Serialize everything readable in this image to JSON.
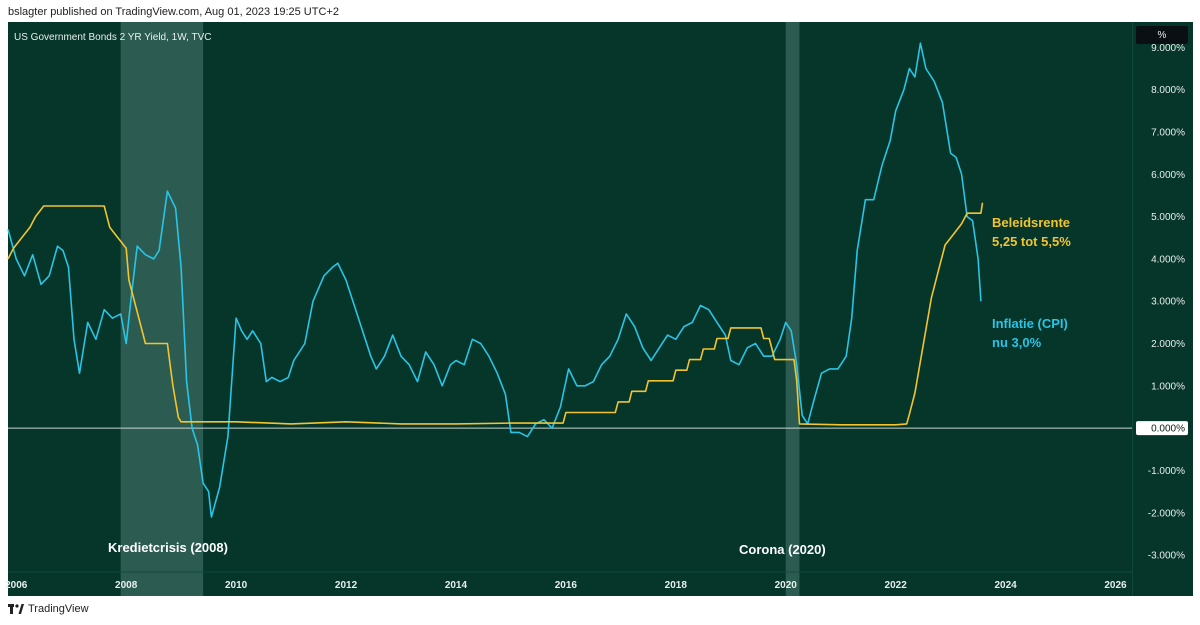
{
  "header": {
    "published_line": "bslagter published on TradingView.com, Aug 01, 2023 19:25 UTC+2",
    "symbol_title": "US Government Bonds 2 YR Yield, 1W, TVC",
    "unit_label": "%"
  },
  "footer": {
    "brand": "TradingView"
  },
  "colors": {
    "background": "#06352a",
    "inflation_line": "#29c4e6",
    "policy_rate_line": "#f2c430",
    "shading": "#3a6a5f",
    "zero_line": "#c9d6d1"
  },
  "annotations": {
    "credit_crisis": "Kredietcrisis (2008)",
    "corona": "Corona (2020)",
    "policy_rate_title": "Beleidsrente",
    "policy_rate_value": "5,25 tot 5,5%",
    "inflation_title": "Inflatie (CPI)",
    "inflation_value": "nu 3,0%"
  },
  "chart_data": {
    "type": "line",
    "x_range": [
      2005.85,
      2026.3
    ],
    "ylim": [
      -3.4,
      9.6
    ],
    "x_ticks": [
      {
        "label": "2006",
        "value": 2006
      },
      {
        "label": "2008",
        "value": 2008
      },
      {
        "label": "2010",
        "value": 2010
      },
      {
        "label": "2012",
        "value": 2012
      },
      {
        "label": "2014",
        "value": 2014
      },
      {
        "label": "2016",
        "value": 2016
      },
      {
        "label": "2018",
        "value": 2018
      },
      {
        "label": "2020",
        "value": 2020
      },
      {
        "label": "2022",
        "value": 2022
      },
      {
        "label": "2024",
        "value": 2024
      },
      {
        "label": "2026",
        "value": 2026
      }
    ],
    "y_ticks": [
      {
        "label": "9.000%",
        "value": 9
      },
      {
        "label": "8.000%",
        "value": 8
      },
      {
        "label": "7.000%",
        "value": 7
      },
      {
        "label": "6.000%",
        "value": 6
      },
      {
        "label": "5.000%",
        "value": 5
      },
      {
        "label": "4.000%",
        "value": 4
      },
      {
        "label": "3.000%",
        "value": 3
      },
      {
        "label": "2.000%",
        "value": 2
      },
      {
        "label": "1.000%",
        "value": 1
      },
      {
        "label": "0.000%",
        "value": 0
      },
      {
        "label": "-1.000%",
        "value": -1
      },
      {
        "label": "-2.000%",
        "value": -2
      },
      {
        "label": "-3.000%",
        "value": -3
      }
    ],
    "shaded_periods": [
      {
        "start": 2007.9,
        "end": 2009.4
      },
      {
        "start": 2020.0,
        "end": 2020.25
      }
    ],
    "series": [
      {
        "name": "Inflatie (CPI)",
        "points": [
          [
            2005.85,
            4.7
          ],
          [
            2006.0,
            4.0
          ],
          [
            2006.15,
            3.6
          ],
          [
            2006.3,
            4.1
          ],
          [
            2006.45,
            3.4
          ],
          [
            2006.6,
            3.6
          ],
          [
            2006.75,
            4.3
          ],
          [
            2006.85,
            4.2
          ],
          [
            2006.95,
            3.8
          ],
          [
            2007.05,
            2.1
          ],
          [
            2007.15,
            1.3
          ],
          [
            2007.3,
            2.5
          ],
          [
            2007.45,
            2.1
          ],
          [
            2007.6,
            2.8
          ],
          [
            2007.75,
            2.6
          ],
          [
            2007.9,
            2.7
          ],
          [
            2008.0,
            2.0
          ],
          [
            2008.1,
            3.2
          ],
          [
            2008.2,
            4.3
          ],
          [
            2008.35,
            4.1
          ],
          [
            2008.5,
            4.0
          ],
          [
            2008.6,
            4.2
          ],
          [
            2008.75,
            5.6
          ],
          [
            2008.9,
            5.2
          ],
          [
            2009.0,
            3.8
          ],
          [
            2009.1,
            1.1
          ],
          [
            2009.2,
            0.0
          ],
          [
            2009.3,
            -0.4
          ],
          [
            2009.4,
            -1.3
          ],
          [
            2009.5,
            -1.5
          ],
          [
            2009.55,
            -2.1
          ],
          [
            2009.7,
            -1.4
          ],
          [
            2009.85,
            -0.2
          ],
          [
            2010.0,
            2.6
          ],
          [
            2010.1,
            2.3
          ],
          [
            2010.2,
            2.1
          ],
          [
            2010.3,
            2.3
          ],
          [
            2010.45,
            2.0
          ],
          [
            2010.55,
            1.1
          ],
          [
            2010.65,
            1.2
          ],
          [
            2010.8,
            1.1
          ],
          [
            2010.95,
            1.2
          ],
          [
            2011.05,
            1.6
          ],
          [
            2011.25,
            2.0
          ],
          [
            2011.4,
            3.0
          ],
          [
            2011.6,
            3.6
          ],
          [
            2011.75,
            3.8
          ],
          [
            2011.85,
            3.9
          ],
          [
            2012.0,
            3.5
          ],
          [
            2012.15,
            2.9
          ],
          [
            2012.3,
            2.3
          ],
          [
            2012.45,
            1.7
          ],
          [
            2012.55,
            1.4
          ],
          [
            2012.7,
            1.7
          ],
          [
            2012.85,
            2.2
          ],
          [
            2013.0,
            1.7
          ],
          [
            2013.15,
            1.5
          ],
          [
            2013.3,
            1.1
          ],
          [
            2013.45,
            1.8
          ],
          [
            2013.6,
            1.5
          ],
          [
            2013.75,
            1.0
          ],
          [
            2013.9,
            1.5
          ],
          [
            2014.0,
            1.6
          ],
          [
            2014.15,
            1.5
          ],
          [
            2014.3,
            2.1
          ],
          [
            2014.45,
            2.0
          ],
          [
            2014.6,
            1.7
          ],
          [
            2014.75,
            1.3
          ],
          [
            2014.9,
            0.8
          ],
          [
            2015.0,
            -0.1
          ],
          [
            2015.15,
            -0.1
          ],
          [
            2015.3,
            -0.2
          ],
          [
            2015.45,
            0.1
          ],
          [
            2015.6,
            0.2
          ],
          [
            2015.75,
            0.0
          ],
          [
            2015.9,
            0.5
          ],
          [
            2016.05,
            1.4
          ],
          [
            2016.2,
            1.0
          ],
          [
            2016.35,
            1.0
          ],
          [
            2016.5,
            1.1
          ],
          [
            2016.65,
            1.5
          ],
          [
            2016.8,
            1.7
          ],
          [
            2016.95,
            2.1
          ],
          [
            2017.1,
            2.7
          ],
          [
            2017.25,
            2.4
          ],
          [
            2017.4,
            1.9
          ],
          [
            2017.55,
            1.6
          ],
          [
            2017.7,
            1.9
          ],
          [
            2017.85,
            2.2
          ],
          [
            2018.0,
            2.1
          ],
          [
            2018.15,
            2.4
          ],
          [
            2018.3,
            2.5
          ],
          [
            2018.45,
            2.9
          ],
          [
            2018.6,
            2.8
          ],
          [
            2018.75,
            2.5
          ],
          [
            2018.9,
            2.2
          ],
          [
            2019.0,
            1.6
          ],
          [
            2019.15,
            1.5
          ],
          [
            2019.3,
            1.9
          ],
          [
            2019.45,
            2.0
          ],
          [
            2019.6,
            1.7
          ],
          [
            2019.75,
            1.7
          ],
          [
            2019.9,
            2.1
          ],
          [
            2020.0,
            2.5
          ],
          [
            2020.1,
            2.3
          ],
          [
            2020.2,
            1.5
          ],
          [
            2020.3,
            0.3
          ],
          [
            2020.4,
            0.1
          ],
          [
            2020.5,
            0.6
          ],
          [
            2020.65,
            1.3
          ],
          [
            2020.8,
            1.4
          ],
          [
            2020.95,
            1.4
          ],
          [
            2021.1,
            1.7
          ],
          [
            2021.2,
            2.6
          ],
          [
            2021.3,
            4.2
          ],
          [
            2021.45,
            5.4
          ],
          [
            2021.6,
            5.4
          ],
          [
            2021.75,
            6.2
          ],
          [
            2021.9,
            6.8
          ],
          [
            2022.0,
            7.5
          ],
          [
            2022.15,
            8.0
          ],
          [
            2022.25,
            8.5
          ],
          [
            2022.35,
            8.3
          ],
          [
            2022.45,
            9.1
          ],
          [
            2022.55,
            8.5
          ],
          [
            2022.7,
            8.2
          ],
          [
            2022.85,
            7.7
          ],
          [
            2023.0,
            6.5
          ],
          [
            2023.1,
            6.4
          ],
          [
            2023.2,
            6.0
          ],
          [
            2023.3,
            5.0
          ],
          [
            2023.4,
            4.9
          ],
          [
            2023.5,
            4.0
          ],
          [
            2023.55,
            3.0
          ]
        ]
      },
      {
        "name": "Beleidsrente",
        "points": [
          [
            2005.85,
            4.0
          ],
          [
            2005.95,
            4.25
          ],
          [
            2006.1,
            4.5
          ],
          [
            2006.25,
            4.75
          ],
          [
            2006.35,
            5.0
          ],
          [
            2006.5,
            5.25
          ],
          [
            2007.6,
            5.25
          ],
          [
            2007.7,
            4.75
          ],
          [
            2007.85,
            4.5
          ],
          [
            2008.0,
            4.25
          ],
          [
            2008.05,
            3.5
          ],
          [
            2008.15,
            3.0
          ],
          [
            2008.3,
            2.25
          ],
          [
            2008.35,
            2.0
          ],
          [
            2008.75,
            2.0
          ],
          [
            2008.8,
            1.5
          ],
          [
            2008.85,
            1.0
          ],
          [
            2008.95,
            0.25
          ],
          [
            2009.0,
            0.15
          ],
          [
            2010.0,
            0.15
          ],
          [
            2011.0,
            0.1
          ],
          [
            2012.0,
            0.15
          ],
          [
            2013.0,
            0.1
          ],
          [
            2014.0,
            0.1
          ],
          [
            2015.0,
            0.12
          ],
          [
            2015.95,
            0.12
          ],
          [
            2016.0,
            0.37
          ],
          [
            2016.9,
            0.37
          ],
          [
            2016.95,
            0.62
          ],
          [
            2017.15,
            0.62
          ],
          [
            2017.2,
            0.87
          ],
          [
            2017.45,
            0.87
          ],
          [
            2017.5,
            1.12
          ],
          [
            2017.95,
            1.12
          ],
          [
            2018.0,
            1.37
          ],
          [
            2018.2,
            1.37
          ],
          [
            2018.25,
            1.62
          ],
          [
            2018.45,
            1.62
          ],
          [
            2018.5,
            1.87
          ],
          [
            2018.7,
            1.87
          ],
          [
            2018.75,
            2.12
          ],
          [
            2018.95,
            2.12
          ],
          [
            2019.0,
            2.37
          ],
          [
            2019.55,
            2.37
          ],
          [
            2019.6,
            2.12
          ],
          [
            2019.7,
            2.12
          ],
          [
            2019.75,
            1.87
          ],
          [
            2019.8,
            1.62
          ],
          [
            2020.15,
            1.62
          ],
          [
            2020.2,
            1.12
          ],
          [
            2020.25,
            0.1
          ],
          [
            2021.0,
            0.08
          ],
          [
            2022.0,
            0.08
          ],
          [
            2022.2,
            0.1
          ],
          [
            2022.25,
            0.33
          ],
          [
            2022.35,
            0.83
          ],
          [
            2022.45,
            1.58
          ],
          [
            2022.55,
            2.33
          ],
          [
            2022.65,
            3.08
          ],
          [
            2022.8,
            3.83
          ],
          [
            2022.9,
            4.33
          ],
          [
            2023.05,
            4.58
          ],
          [
            2023.2,
            4.83
          ],
          [
            2023.3,
            5.08
          ],
          [
            2023.55,
            5.08
          ],
          [
            2023.58,
            5.33
          ]
        ]
      }
    ]
  }
}
